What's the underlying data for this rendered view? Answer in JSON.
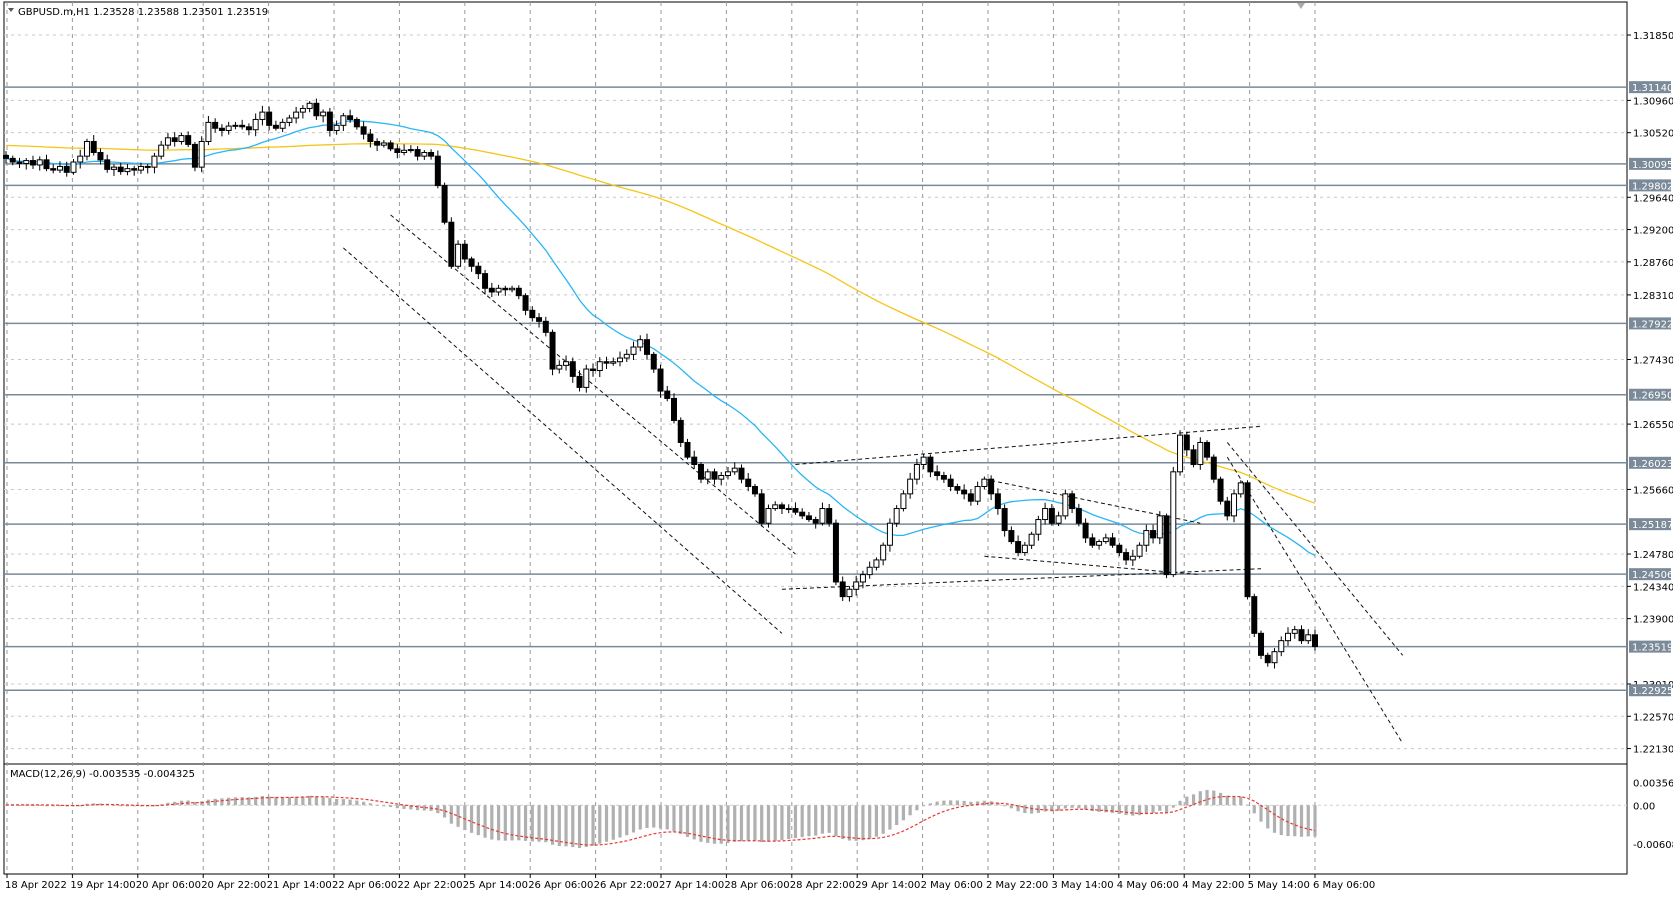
{
  "header": {
    "symbol_info": "GBPUSD.m,H1  1.23528 1.23588 1.23501 1.23519"
  },
  "macd_label": "MACD(12,26,9) -0.003535 -0.004325",
  "chart_data": [
    {
      "type": "candlestick",
      "symbol": "GBPUSD.m",
      "timeframe": "H1",
      "ohlc_last": {
        "open": 1.23528,
        "high": 1.23588,
        "low": 1.23501,
        "close": 1.23519
      },
      "ylim": [
        1.2192,
        1.323
      ],
      "y_ticks": [
        "1.31850",
        "1.31140",
        "1.30960",
        "1.30520",
        "1.30095",
        "1.29802",
        "1.29640",
        "1.29200",
        "1.28760",
        "1.28310",
        "1.27922",
        "1.27430",
        "1.26950",
        "1.26550",
        "1.26023",
        "1.25660",
        "1.25187",
        "1.24780",
        "1.24506",
        "1.24340",
        "1.23900",
        "1.23519",
        "1.23010",
        "1.22925",
        "1.22570",
        "1.22130"
      ],
      "x_ticks": [
        "18 Apr 2022",
        "19 Apr 14:00",
        "20 Apr 06:00",
        "20 Apr 22:00",
        "21 Apr 14:00",
        "22 Apr 06:00",
        "22 Apr 22:00",
        "25 Apr 14:00",
        "26 Apr 06:00",
        "26 Apr 22:00",
        "27 Apr 14:00",
        "28 Apr 06:00",
        "28 Apr 22:00",
        "29 Apr 14:00",
        "2 May 06:00",
        "2 May 22:00",
        "3 May 14:00",
        "4 May 06:00",
        "4 May 22:00",
        "5 May 14:00",
        "6 May 06:00"
      ],
      "horizontal_levels": [
        {
          "value": 1.3114,
          "label": "1.31140"
        },
        {
          "value": 1.30095,
          "label": "1.30095"
        },
        {
          "value": 1.29802,
          "label": "1.29802"
        },
        {
          "value": 1.27922,
          "label": "1.27922"
        },
        {
          "value": 1.2695,
          "label": "1.26950"
        },
        {
          "value": 1.26023,
          "label": "1.26023"
        },
        {
          "value": 1.25187,
          "label": "1.25187"
        },
        {
          "value": 1.24506,
          "label": "1.24506"
        },
        {
          "value": 1.23519,
          "label": "1.23519"
        },
        {
          "value": 1.22925,
          "label": "1.22925"
        }
      ],
      "close_series": [
        1.3017,
        1.3012,
        1.301,
        1.3014,
        1.3008,
        1.3015,
        1.3003,
        1.3001,
        1.3006,
        1.2998,
        1.3012,
        1.302,
        1.304,
        1.3025,
        1.3015,
        1.3002,
        1.3005,
        1.2999,
        1.3003,
        1.3001,
        1.3006,
        1.3005,
        1.302,
        1.3035,
        1.3045,
        1.304,
        1.3048,
        1.3036,
        1.3005,
        1.304,
        1.3066,
        1.3058,
        1.3055,
        1.3061,
        1.3062,
        1.306,
        1.3056,
        1.307,
        1.308,
        1.3062,
        1.3058,
        1.3066,
        1.3072,
        1.308,
        1.3085,
        1.3092,
        1.3075,
        1.308,
        1.3055,
        1.3062,
        1.3075,
        1.307,
        1.306,
        1.305,
        1.304,
        1.3035,
        1.3038,
        1.303,
        1.3025,
        1.3028,
        1.3029,
        1.302,
        1.3025,
        1.302,
        1.298,
        1.293,
        1.287,
        1.29,
        1.288,
        1.287,
        1.286,
        1.284,
        1.2835,
        1.284,
        1.2838,
        1.284,
        1.283,
        1.281,
        1.28,
        1.2795,
        1.278,
        1.273,
        1.2735,
        1.274,
        1.272,
        1.2705,
        1.273,
        1.2728,
        1.274,
        1.2738,
        1.274,
        1.2745,
        1.275,
        1.276,
        1.277,
        1.275,
        1.273,
        1.27,
        1.269,
        1.266,
        1.263,
        1.261,
        1.26,
        1.258,
        1.259,
        1.258,
        1.2585,
        1.259,
        1.2595,
        1.258,
        1.257,
        1.256,
        1.252,
        1.254,
        1.2545,
        1.254,
        1.254,
        1.2535,
        1.253,
        1.2525,
        1.252,
        1.254,
        1.252,
        1.244,
        1.242,
        1.243,
        1.244,
        1.245,
        1.246,
        1.247,
        1.249,
        1.252,
        1.254,
        1.256,
        1.258,
        1.26,
        1.261,
        1.259,
        1.2585,
        1.258,
        1.257,
        1.2565,
        1.256,
        1.255,
        1.257,
        1.258,
        1.256,
        1.254,
        1.251,
        1.2495,
        1.248,
        1.249,
        1.2505,
        1.2525,
        1.254,
        1.252,
        1.253,
        1.256,
        1.254,
        1.252,
        1.25,
        1.249,
        1.2495,
        1.25,
        1.249,
        1.248,
        1.247,
        1.2475,
        1.249,
        1.251,
        1.25,
        1.253,
        1.245,
        1.259,
        1.264,
        1.262,
        1.26,
        1.263,
        1.261,
        1.258,
        1.255,
        1.253,
        1.256,
        1.2575,
        1.242,
        1.237,
        1.234,
        1.233,
        1.2345,
        1.236,
        1.237,
        1.2375,
        1.236,
        1.2368,
        1.2352
      ],
      "series": [
        {
          "name": "",
          "type": "moving-average",
          "color": "#f5c518"
        },
        {
          "name": "",
          "type": "moving-average",
          "color": "#29b6f6"
        }
      ],
      "trendlines": "dashed channels and wedges drawn on chart"
    },
    {
      "type": "bar",
      "indicator": "MACD",
      "params": [
        12,
        26,
        9
      ],
      "main": -0.003535,
      "signal": -0.004325,
      "ylim": [
        -0.0065,
        0.0039
      ],
      "y_ticks": [
        "0.003569",
        "0.00",
        "-0.006087"
      ],
      "signal_color": "#e53935",
      "histogram_color": "#b0b0b0"
    }
  ]
}
